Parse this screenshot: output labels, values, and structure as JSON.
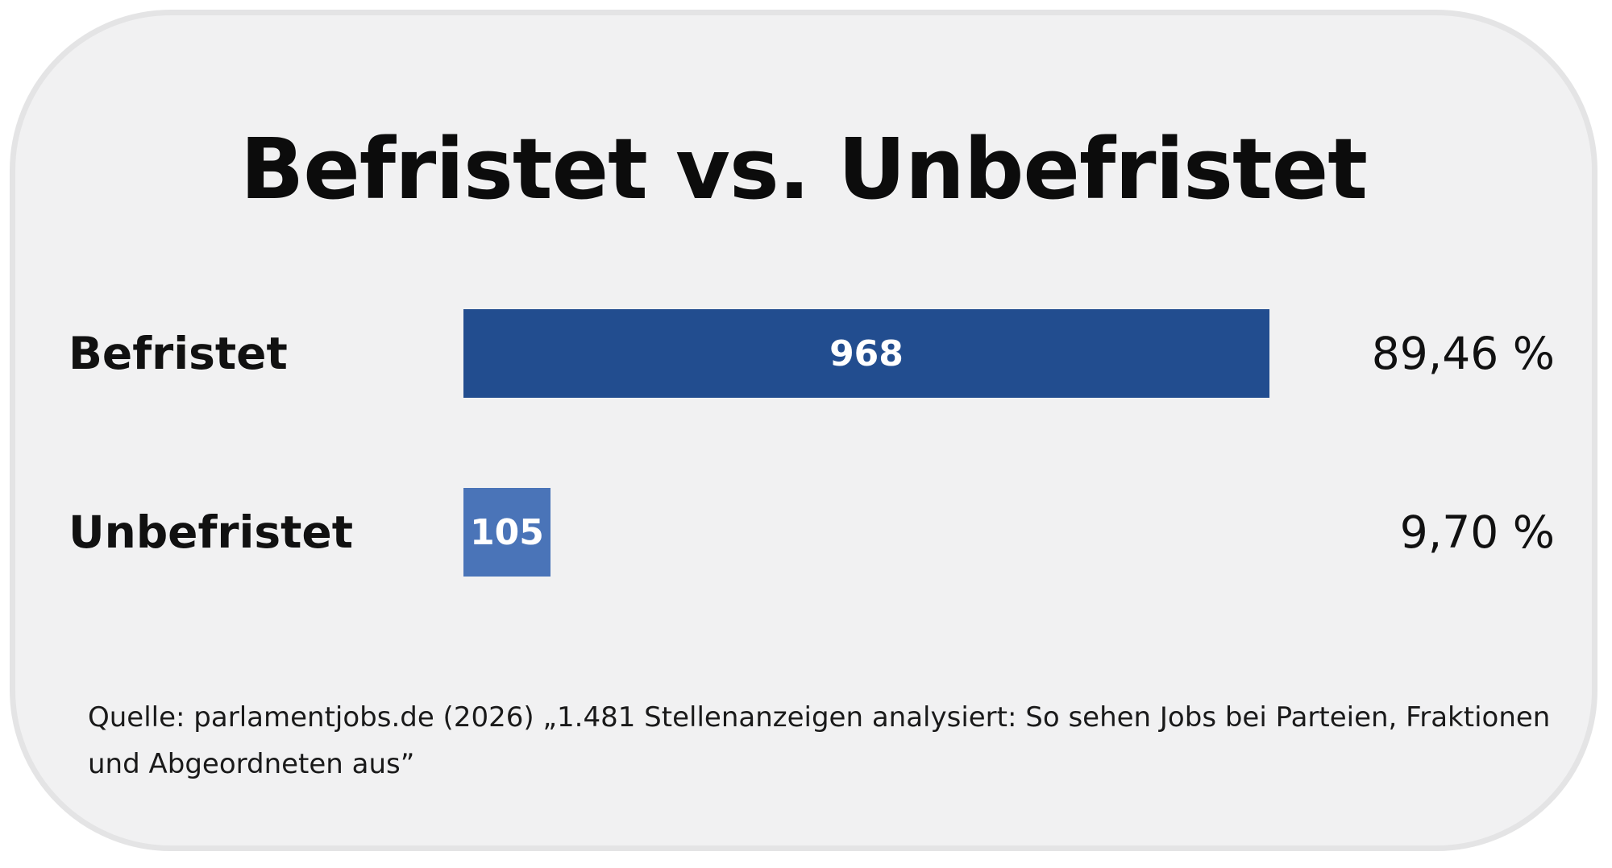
{
  "title": "Befristet vs. Unbefristet",
  "source": "Quelle: parlamentjobs.de (2026) „1.481 Stellenanzeigen analysiert: So sehen Jobs bei Parteien, Fraktionen und Abgeordneten aus”",
  "colors": {
    "background": "#f1f1f2",
    "border": "#e4e4e5",
    "bar_befristet": "#224d8f",
    "bar_unbefristet": "#4a74b8"
  },
  "chart_data": {
    "type": "bar",
    "orientation": "horizontal",
    "title": "Befristet vs. Unbefristet",
    "categories": [
      "Befristet",
      "Unbefristet"
    ],
    "values": [
      968,
      105
    ],
    "value_labels": [
      "968",
      "105"
    ],
    "percent_labels": [
      "89,46 %",
      "9,70 %"
    ],
    "bar_colors": [
      "#224d8f",
      "#4a74b8"
    ],
    "grid": false,
    "legend": "none"
  }
}
